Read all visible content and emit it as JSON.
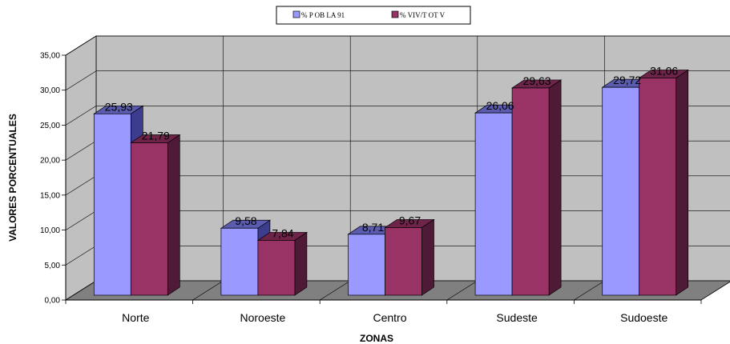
{
  "chart_data": {
    "type": "bar",
    "style": "3d-clustered",
    "categories": [
      "Norte",
      "Noroeste",
      "Centro",
      "Sudeste",
      "Sudoeste"
    ],
    "series": [
      {
        "name": "% P OB LA 91",
        "values": [
          25.93,
          9.58,
          8.71,
          26.06,
          29.72
        ],
        "data_labels": [
          "25,93",
          "9,58",
          "8,71",
          "26,06",
          "29,72"
        ]
      },
      {
        "name": "% VIV/T OT V",
        "values": [
          21.79,
          7.84,
          9.67,
          29.63,
          31.06
        ],
        "data_labels": [
          "21,79",
          "7,84",
          "9,67",
          "29,63",
          "31,06"
        ]
      }
    ],
    "xlabel": "ZONAS",
    "ylabel": "VALORES PORCENTUALES",
    "ylim": [
      0,
      35
    ],
    "yticks": [
      0,
      5,
      10,
      15,
      20,
      25,
      30,
      35
    ],
    "ytick_labels": [
      "0,00",
      "5,00",
      "10,00",
      "15,00",
      "20,00",
      "25,00",
      "30,00",
      "35,00"
    ],
    "grid": true,
    "legend_position": "top-center",
    "colors": {
      "series1_front": "#9999ff",
      "series1_side": "#3d3d8f",
      "series1_top": "#5b5bb0",
      "series2_front": "#993366",
      "series2_side": "#4f1a35",
      "series2_top": "#6e2449",
      "wall": "#c0c0c0",
      "floor": "#808080"
    }
  }
}
